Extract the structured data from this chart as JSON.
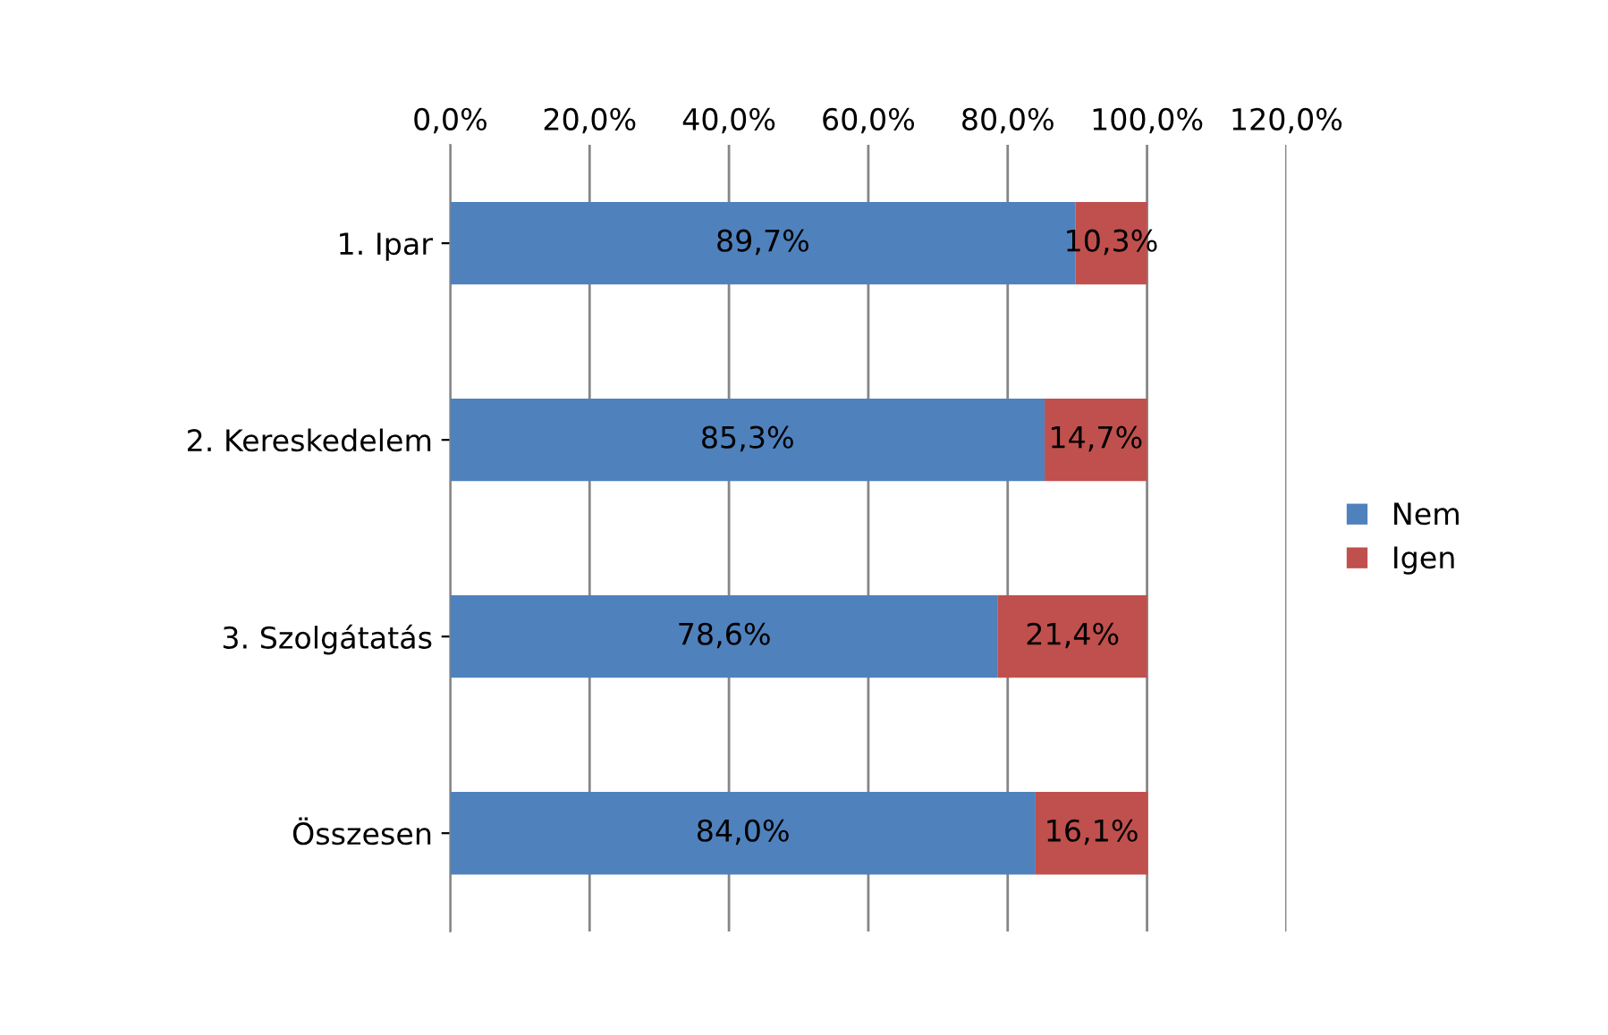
{
  "chart_data": {
    "type": "bar",
    "orientation": "horizontal",
    "stacked": true,
    "categories": [
      "1. Ipar",
      "2. Kereskedelem",
      "3. Szolgátatás",
      "Összesen"
    ],
    "series": [
      {
        "name": "Nem",
        "color": "#4f81bd",
        "values": [
          89.7,
          85.3,
          78.6,
          84.0
        ],
        "value_labels": [
          "89,7%",
          "85,3%",
          "78,6%",
          "84,0%"
        ]
      },
      {
        "name": "Igen",
        "color": "#c0504d",
        "values": [
          10.3,
          14.7,
          21.4,
          16.1
        ],
        "value_labels": [
          "10,3%",
          "14,7%",
          "21,4%",
          "16,1%"
        ]
      }
    ],
    "xlim": [
      0,
      120
    ],
    "xticks": [
      {
        "value": 0,
        "label": "0,0%"
      },
      {
        "value": 20,
        "label": "20,0%"
      },
      {
        "value": 40,
        "label": "40,0%"
      },
      {
        "value": 60,
        "label": "60,0%"
      },
      {
        "value": 80,
        "label": "80,0%"
      },
      {
        "value": 100,
        "label": "100,0%"
      },
      {
        "value": 120,
        "label": "120,0%"
      }
    ],
    "grid": "x",
    "legend": "right"
  }
}
